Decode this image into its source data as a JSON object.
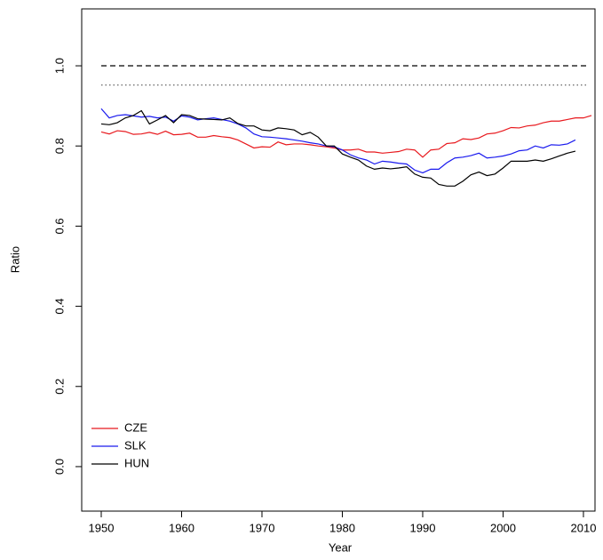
{
  "chart_data": {
    "type": "line",
    "xlabel": "Year",
    "ylabel": "Ratio",
    "x": [
      1950,
      1951,
      1952,
      1953,
      1954,
      1955,
      1956,
      1957,
      1958,
      1959,
      1960,
      1961,
      1962,
      1963,
      1964,
      1965,
      1966,
      1967,
      1968,
      1969,
      1970,
      1971,
      1972,
      1973,
      1974,
      1975,
      1976,
      1977,
      1978,
      1979,
      1980,
      1981,
      1982,
      1983,
      1984,
      1985,
      1986,
      1987,
      1988,
      1989,
      1990,
      1991,
      1992,
      1993,
      1994,
      1995,
      1996,
      1997,
      1998,
      1999,
      2000,
      2001,
      2002,
      2003,
      2004,
      2005,
      2006,
      2007,
      2008,
      2009,
      2010,
      2011
    ],
    "series": [
      {
        "name": "CZE",
        "color": "#e8191e",
        "values": [
          0.835,
          0.83,
          0.838,
          0.836,
          0.829,
          0.83,
          0.834,
          0.829,
          0.837,
          0.828,
          0.829,
          0.832,
          0.822,
          0.822,
          0.826,
          0.823,
          0.821,
          0.815,
          0.805,
          0.795,
          0.798,
          0.797,
          0.81,
          0.803,
          0.805,
          0.805,
          0.803,
          0.8,
          0.798,
          0.795,
          0.79,
          0.79,
          0.792,
          0.785,
          0.785,
          0.782,
          0.784,
          0.786,
          0.792,
          0.79,
          0.772,
          0.79,
          0.792,
          0.806,
          0.808,
          0.818,
          0.816,
          0.82,
          0.83,
          0.832,
          0.838,
          0.846,
          0.845,
          0.85,
          0.852,
          0.858,
          0.862,
          0.862,
          0.866,
          0.87,
          0.87,
          0.876
        ]
      },
      {
        "name": "SLK",
        "color": "#1a1aee",
        "values": [
          0.893,
          0.87,
          0.876,
          0.878,
          0.875,
          0.872,
          0.874,
          0.87,
          0.872,
          0.862,
          0.875,
          0.872,
          0.865,
          0.868,
          0.87,
          0.866,
          0.862,
          0.855,
          0.845,
          0.83,
          0.823,
          0.822,
          0.82,
          0.818,
          0.815,
          0.812,
          0.808,
          0.805,
          0.8,
          0.798,
          0.79,
          0.778,
          0.77,
          0.765,
          0.755,
          0.762,
          0.76,
          0.757,
          0.755,
          0.74,
          0.733,
          0.742,
          0.742,
          0.758,
          0.77,
          0.772,
          0.776,
          0.782,
          0.77,
          0.772,
          0.775,
          0.78,
          0.788,
          0.79,
          0.8,
          0.795,
          0.803,
          0.802,
          0.805,
          0.815,
          null,
          null
        ]
      },
      {
        "name": "HUN",
        "color": "#000000",
        "values": [
          0.855,
          0.853,
          0.858,
          0.87,
          0.876,
          0.888,
          0.855,
          0.865,
          0.876,
          0.858,
          0.878,
          0.876,
          0.868,
          0.867,
          0.866,
          0.865,
          0.87,
          0.856,
          0.85,
          0.85,
          0.84,
          0.838,
          0.845,
          0.843,
          0.84,
          0.828,
          0.834,
          0.822,
          0.8,
          0.8,
          0.78,
          0.772,
          0.765,
          0.75,
          0.742,
          0.745,
          0.743,
          0.745,
          0.748,
          0.73,
          0.722,
          0.72,
          0.704,
          0.7,
          0.7,
          0.712,
          0.728,
          0.735,
          0.726,
          0.73,
          0.745,
          0.762,
          0.762,
          0.762,
          0.765,
          0.762,
          0.768,
          0.775,
          0.782,
          0.787,
          null,
          null
        ]
      }
    ],
    "hlines": [
      {
        "value": 1.0,
        "style": "dashed",
        "color": "#000000"
      },
      {
        "value": 0.952,
        "style": "dotted",
        "color": "#555555"
      }
    ],
    "xlim": [
      1947.57,
      2011.44
    ],
    "ylim": [
      -0.111,
      1.142
    ],
    "xticks": [
      1950,
      1960,
      1970,
      1980,
      1990,
      2000,
      2010
    ],
    "yticks": [
      {
        "value": 0,
        "label": "0.0"
      },
      0.2,
      0.4,
      0.6,
      0.8,
      {
        "value": 1,
        "label": "1.0"
      }
    ],
    "legend": "bottom-left",
    "grid": false
  }
}
